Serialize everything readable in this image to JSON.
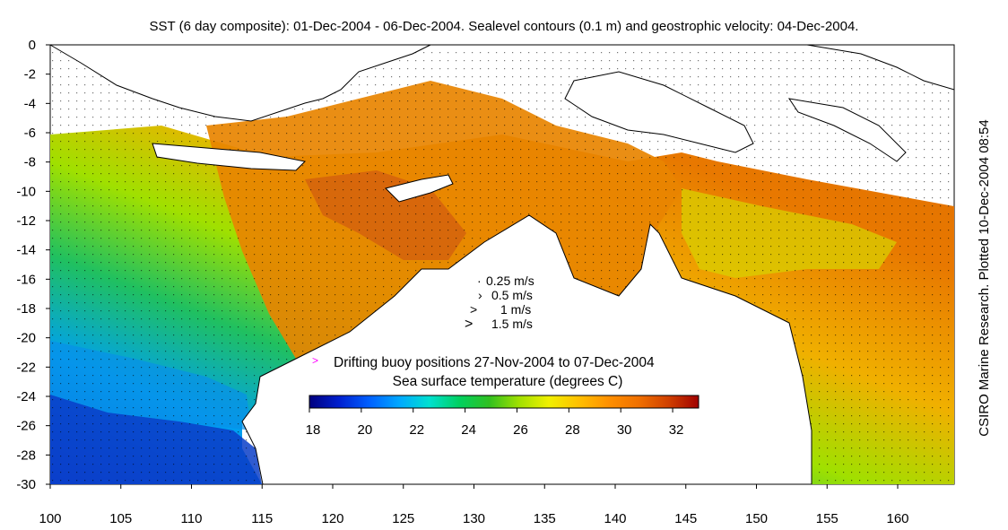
{
  "title": "SST (6 day composite): 01-Dec-2004 - 06-Dec-2004. Sealevel contours (0.1 m) and geostrophic velocity: 04-Dec-2004.",
  "credit": "CSIRO Marine Research. Plotted 10-Dec-2004 08:54",
  "axes": {
    "x_ticks": [
      "100",
      "105",
      "110",
      "115",
      "120",
      "125",
      "130",
      "135",
      "140",
      "145",
      "150",
      "155",
      "160"
    ],
    "y_ticks": [
      "0",
      "-2",
      "-4",
      "-6",
      "-8",
      "-10",
      "-12",
      "-14",
      "-16",
      "-18",
      "-20",
      "-22",
      "-24",
      "-26",
      "-28",
      "-30"
    ],
    "lon_range": [
      100,
      164
    ],
    "lat_range": [
      -30,
      0
    ]
  },
  "velocity_key": {
    "items": [
      {
        "symbol": "·",
        "label": "0.25 m/s"
      },
      {
        "symbol": "›",
        "label": "0.5 m/s"
      },
      {
        "symbol": ">",
        "label": "1 m/s"
      },
      {
        "symbol": ">",
        "label": "1.5 m/s"
      }
    ]
  },
  "buoy_legend": {
    "symbol": ">",
    "label": "Drifting buoy positions 27-Nov-2004 to 07-Dec-2004",
    "color": "#ff00ff"
  },
  "colorbar": {
    "title": "Sea surface temperature (degrees C)",
    "min": 18,
    "max": 33,
    "ticks": [
      "18",
      "20",
      "22",
      "24",
      "26",
      "28",
      "30",
      "32"
    ],
    "colors": [
      "#00007f",
      "#0020d0",
      "#0060ff",
      "#00a8ff",
      "#00e0d0",
      "#00d060",
      "#30c020",
      "#a0e000",
      "#f0f000",
      "#ffc000",
      "#ff9000",
      "#f07000",
      "#d04000",
      "#a00000"
    ]
  }
}
